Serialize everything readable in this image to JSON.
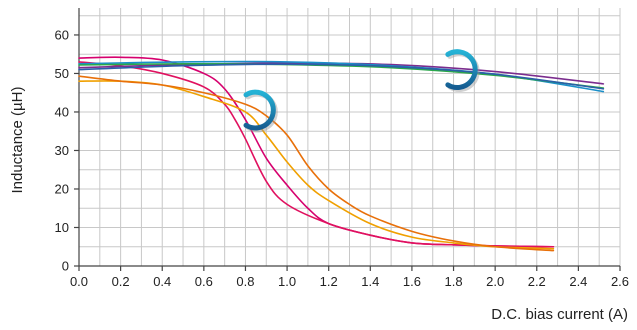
{
  "chart_data": {
    "type": "line",
    "title": "",
    "xlabel": "D.C. bias current (A)",
    "ylabel": "Inductance (µH)",
    "xlim": [
      0,
      2.6
    ],
    "ylim": [
      0,
      67
    ],
    "x_ticks": [
      "0.0",
      "0.2",
      "0.4",
      "0.6",
      "0.8",
      "1.0",
      "1.2",
      "1.4",
      "1.6",
      "1.8",
      "2.0",
      "2.2",
      "2.4",
      "2.6"
    ],
    "x_tick_values": [
      0,
      0.2,
      0.4,
      0.6,
      0.8,
      1.0,
      1.2,
      1.4,
      1.6,
      1.8,
      2.0,
      2.2,
      2.4,
      2.6
    ],
    "y_ticks": [
      "0",
      "10",
      "20",
      "30",
      "40",
      "50",
      "60"
    ],
    "y_tick_values": [
      0,
      10,
      20,
      30,
      40,
      50,
      60
    ],
    "x_minor_step": 0.1,
    "y_minor_step": 5,
    "grid": true,
    "legend": "none",
    "series": [
      {
        "color": "#d6006e",
        "points": [
          [
            0,
            54
          ],
          [
            0.2,
            54.2
          ],
          [
            0.4,
            53.5
          ],
          [
            0.6,
            50
          ],
          [
            0.7,
            46
          ],
          [
            0.8,
            38
          ],
          [
            0.9,
            28
          ],
          [
            1.0,
            21
          ],
          [
            1.1,
            15
          ],
          [
            1.2,
            11
          ],
          [
            1.4,
            8
          ],
          [
            1.6,
            6
          ],
          [
            1.8,
            5.5
          ],
          [
            2.0,
            5.2
          ],
          [
            2.28,
            5
          ]
        ]
      },
      {
        "color": "#e0115f",
        "points": [
          [
            0,
            53
          ],
          [
            0.2,
            52
          ],
          [
            0.4,
            50
          ],
          [
            0.6,
            46.5
          ],
          [
            0.7,
            42
          ],
          [
            0.75,
            38
          ],
          [
            0.8,
            33
          ],
          [
            0.9,
            22
          ],
          [
            1.0,
            16
          ],
          [
            1.2,
            11
          ],
          [
            1.4,
            8
          ],
          [
            1.6,
            6
          ],
          [
            1.8,
            5.5
          ],
          [
            2.0,
            5.2
          ],
          [
            2.28,
            5
          ]
        ]
      },
      {
        "color": "#f0a000",
        "points": [
          [
            0,
            48
          ],
          [
            0.2,
            48
          ],
          [
            0.4,
            47
          ],
          [
            0.6,
            44
          ],
          [
            0.8,
            40
          ],
          [
            0.9,
            34
          ],
          [
            1.0,
            27
          ],
          [
            1.1,
            21
          ],
          [
            1.2,
            17
          ],
          [
            1.4,
            11
          ],
          [
            1.6,
            7.5
          ],
          [
            1.8,
            6
          ],
          [
            2.0,
            5
          ],
          [
            2.28,
            4.5
          ]
        ]
      },
      {
        "color": "#e8700a",
        "points": [
          [
            0,
            49.3
          ],
          [
            0.2,
            48
          ],
          [
            0.4,
            47
          ],
          [
            0.6,
            45
          ],
          [
            0.8,
            42
          ],
          [
            0.9,
            39
          ],
          [
            1.0,
            34
          ],
          [
            1.1,
            26
          ],
          [
            1.2,
            20
          ],
          [
            1.3,
            16
          ],
          [
            1.4,
            13
          ],
          [
            1.6,
            9
          ],
          [
            1.8,
            6.5
          ],
          [
            2.0,
            5
          ],
          [
            2.28,
            4
          ]
        ]
      },
      {
        "color": "#7b2d8e",
        "points": [
          [
            0,
            51.5
          ],
          [
            0.5,
            52.3
          ],
          [
            1.0,
            52.7
          ],
          [
            1.5,
            52.3
          ],
          [
            2.0,
            50.5
          ],
          [
            2.52,
            47.3
          ]
        ]
      },
      {
        "color": "#1a8fc9",
        "points": [
          [
            0,
            52.5
          ],
          [
            0.5,
            53
          ],
          [
            1.0,
            53
          ],
          [
            1.5,
            52
          ],
          [
            2.0,
            49.8
          ],
          [
            2.52,
            45.3
          ]
        ]
      },
      {
        "color": "#2aa84a",
        "points": [
          [
            0,
            52.2
          ],
          [
            0.5,
            52.5
          ],
          [
            1.0,
            52.3
          ],
          [
            1.5,
            51.5
          ],
          [
            2.0,
            49.5
          ],
          [
            2.52,
            46.2
          ]
        ]
      },
      {
        "color": "#2a5fa8",
        "points": [
          [
            0,
            51
          ],
          [
            0.5,
            52
          ],
          [
            1.0,
            52.4
          ],
          [
            1.5,
            51.8
          ],
          [
            2.0,
            49.8
          ],
          [
            2.52,
            46
          ]
        ]
      }
    ],
    "markers": [
      {
        "name": "left-arc",
        "x": 0.85,
        "y": 40.5,
        "open_side": "left",
        "size": 7.5
      },
      {
        "name": "right-arc",
        "x": 1.82,
        "y": 51,
        "open_side": "left",
        "size": 7.5
      }
    ]
  }
}
